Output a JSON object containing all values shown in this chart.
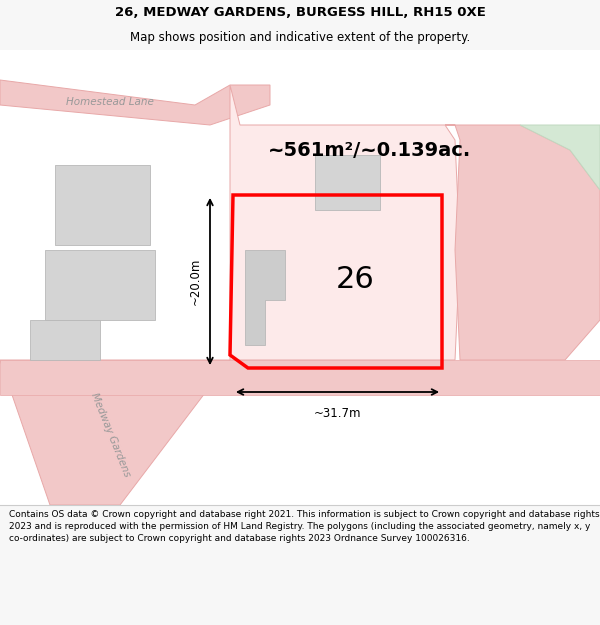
{
  "title_line1": "26, MEDWAY GARDENS, BURGESS HILL, RH15 0XE",
  "title_line2": "Map shows position and indicative extent of the property.",
  "footer_text": "Contains OS data © Crown copyright and database right 2021. This information is subject to Crown copyright and database rights 2023 and is reproduced with the permission of HM Land Registry. The polygons (including the associated geometry, namely x, y co-ordinates) are subject to Crown copyright and database rights 2023 Ordnance Survey 100026316.",
  "area_label": "~561m²/~0.139ac.",
  "number_label": "26",
  "width_label": "~31.7m",
  "height_label": "~20.0m",
  "bg_color": "#f7f7f7",
  "map_bg": "#ffffff",
  "plot_outline_color": "#ff0000",
  "road_color": "#f2c8c8",
  "road_outline": "#e8a8a8",
  "building_color": "#d4d4d4",
  "building_outline": "#b8b8b8",
  "green_area_color": "#d4e8d4",
  "green_outline": "#c0d8c0",
  "street_label1": "Homestead Lane",
  "street_label2": "Medway Gardens",
  "title_fontsize": 9.5,
  "subtitle_fontsize": 8.5,
  "footer_fontsize": 6.5,
  "area_fontsize": 14,
  "number_fontsize": 22,
  "street_fontsize": 7.5,
  "dim_fontsize": 8.5
}
